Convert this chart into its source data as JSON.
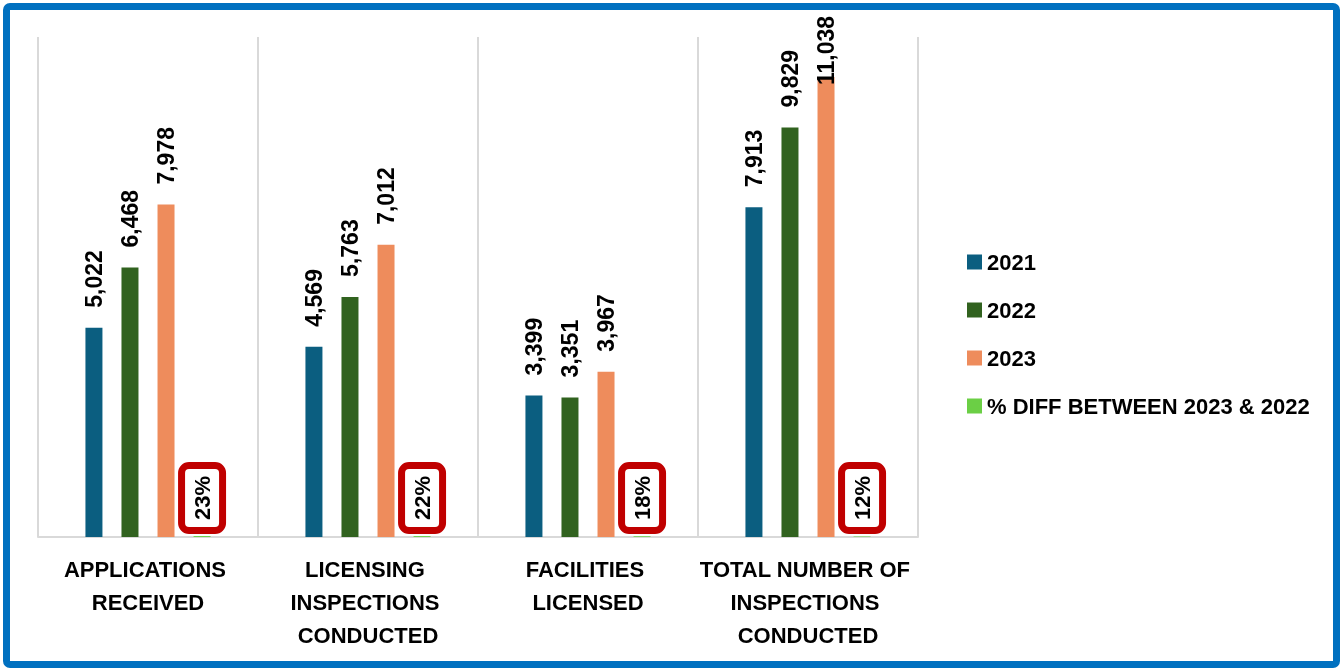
{
  "chart_data": {
    "type": "bar",
    "categories": [
      "APPLICATIONS RECEIVED",
      "LICENSING INSPECTIONS CONDUCTED",
      "FACILITIES LICENSED",
      "TOTAL NUMBER OF INSPECTIONS CONDUCTED"
    ],
    "series": [
      {
        "name": "2021",
        "color": "#0b5e80",
        "values": [
          5022,
          4569,
          3399,
          7913
        ],
        "value_labels": [
          "5,022",
          "4,569",
          "3,399",
          "7,913"
        ]
      },
      {
        "name": "2022",
        "color": "#31621f",
        "values": [
          6468,
          5763,
          3351,
          9829
        ],
        "value_labels": [
          "6,468",
          "5,763",
          "3,351",
          "9,829"
        ]
      },
      {
        "name": "2023",
        "color": "#ee8c5c",
        "values": [
          7978,
          7012,
          3967,
          11038
        ],
        "value_labels": [
          "7,978",
          "7,012",
          "3,967",
          "11,038"
        ]
      },
      {
        "name": "% DIFF BETWEEN 2023 & 2022",
        "color": "#6bcf45",
        "values": [
          23,
          22,
          18,
          12
        ],
        "value_labels": [
          "23%",
          "22%",
          "18%",
          "12%"
        ]
      }
    ],
    "grid": "x",
    "legend": "right",
    "tick_labels": "x"
  }
}
